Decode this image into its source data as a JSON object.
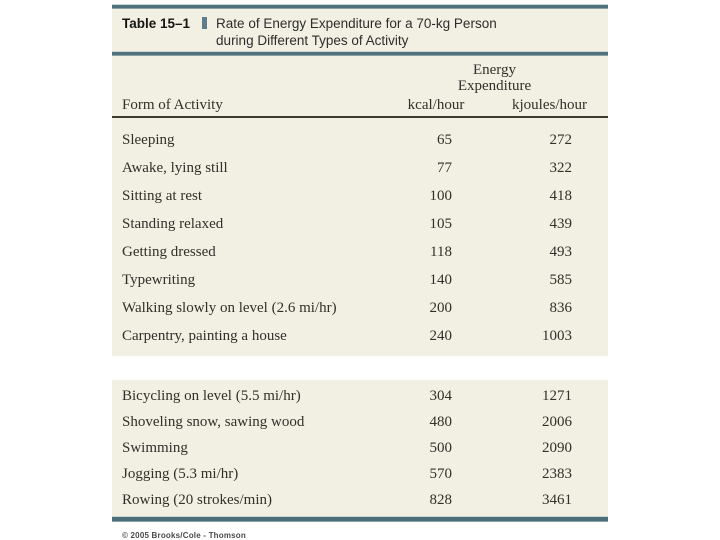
{
  "colors": {
    "teal_rule": "#50727c",
    "cream_background": "#f1f0e2",
    "dark_rule": "#3a392e",
    "marker": "#5d7d8b",
    "body_text": "#31302a"
  },
  "title": {
    "label": "Table 15–1",
    "line1": "Rate of Energy Expenditure for a 70-kg Person",
    "line2": "during Different Types of Activity"
  },
  "header": {
    "group_line1": "Energy",
    "group_line2": "Expenditure",
    "activity": "Form of Activity",
    "kcal": "kcal/hour",
    "kjoules": "kjoules/hour"
  },
  "chart_data": {
    "type": "table",
    "title": "Table 15–1 Rate of Energy Expenditure for a 70-kg Person during Different Types of Activity",
    "columns": [
      "Form of Activity",
      "kcal/hour",
      "kjoules/hour"
    ],
    "sections": [
      {
        "rows": [
          {
            "activity": "Sleeping",
            "kcal": "65",
            "kjoules": "272"
          },
          {
            "activity": "Awake, lying still",
            "kcal": "77",
            "kjoules": "322"
          },
          {
            "activity": "Sitting at rest",
            "kcal": "100",
            "kjoules": "418"
          },
          {
            "activity": "Standing relaxed",
            "kcal": "105",
            "kjoules": "439"
          },
          {
            "activity": "Getting dressed",
            "kcal": "118",
            "kjoules": "493"
          },
          {
            "activity": "Typewriting",
            "kcal": "140",
            "kjoules": "585"
          },
          {
            "activity": "Walking slowly on level (2.6 mi/hr)",
            "kcal": "200",
            "kjoules": "836"
          },
          {
            "activity": "Carpentry, painting a house",
            "kcal": "240",
            "kjoules": "1003"
          }
        ]
      },
      {
        "rows": [
          {
            "activity": "Bicycling on level (5.5 mi/hr)",
            "kcal": "304",
            "kjoules": "1271"
          },
          {
            "activity": "Shoveling snow, sawing wood",
            "kcal": "480",
            "kjoules": "2006"
          },
          {
            "activity": "Swimming",
            "kcal": "500",
            "kjoules": "2090"
          },
          {
            "activity": "Jogging (5.3 mi/hr)",
            "kcal": "570",
            "kjoules": "2383"
          },
          {
            "activity": "Rowing (20 strokes/min)",
            "kcal": "828",
            "kjoules": "3461"
          }
        ]
      }
    ]
  },
  "footer": {
    "copyright": "© 2005 Brooks/Cole - Thomson"
  }
}
